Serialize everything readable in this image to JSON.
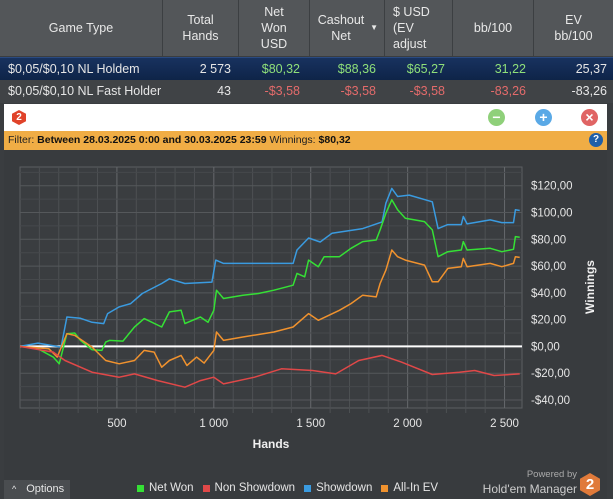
{
  "table": {
    "headers": [
      "Game Type",
      "Total Hands",
      "Net Won USD",
      "Cashout Net",
      "$ USD (EV adjust",
      "bb/100",
      "EV bb/100"
    ],
    "rows": [
      {
        "game": "$0,05/$0,10 NL Holdem",
        "hands": "2 573",
        "net": "$80,32",
        "cashout": "$88,36",
        "ev": "$65,27",
        "bb": "31,22",
        "evbb": "25,37"
      },
      {
        "game": "$0,05/$0,10 NL Fast Holder",
        "hands": "43",
        "net": "-$3,58",
        "cashout": "-$3,58",
        "ev": "-$3,58",
        "bb": "-83,26",
        "evbb": "-83,26"
      }
    ]
  },
  "window": {
    "logo": "2",
    "minimize": "−",
    "maximize": "+",
    "close": "×"
  },
  "filter": {
    "label": "Filter:",
    "range": "Between 28.03.2025 0:00 and 30.03.2025 23:59",
    "winnings_label": "Winnings:",
    "winnings": "$80,32",
    "help": "?"
  },
  "options_label": "Options",
  "powered_by": "Powered by",
  "brand": "Hold'em Manager",
  "chart_data": {
    "type": "line",
    "xlabel": "Hands",
    "ylabel": "Winnings",
    "xlim": [
      0,
      2590
    ],
    "ylim": [
      -46,
      134
    ],
    "xticks": [
      500,
      1000,
      1500,
      2000,
      2500
    ],
    "xtick_labels": [
      "500",
      "1 000",
      "1 500",
      "2 000",
      "2 500"
    ],
    "yticks": [
      120,
      100,
      80,
      60,
      40,
      20,
      0,
      -20,
      -40
    ],
    "ytick_labels": [
      "$120,00",
      "$100,00",
      "$80,00",
      "$60,00",
      "$40,00",
      "$20,00",
      "$0,00",
      "-$20,00",
      "-$40,00"
    ],
    "grid": true,
    "legend": "bottom",
    "series": [
      {
        "name": "Showdown",
        "color": "#3a9be0",
        "x": [
          0,
          93,
          212,
          242,
          312,
          372,
          432,
          452,
          512,
          571,
          631,
          731,
          771,
          851,
          990,
          1010,
          1050,
          1409,
          1429,
          1489,
          1549,
          1609,
          1768,
          1868,
          1888,
          1918,
          1948,
          2008,
          2127,
          2157,
          2207,
          2277,
          2287,
          2307,
          2426,
          2486,
          2546,
          2556,
          2578
        ],
        "y": [
          0,
          2.5,
          -0.5,
          22,
          21,
          18,
          17,
          24.5,
          29.5,
          32,
          39.5,
          47,
          50.5,
          47,
          48,
          64.5,
          62,
          62,
          72,
          81,
          78,
          84.5,
          88,
          93,
          107,
          118,
          112,
          113,
          108,
          88,
          91,
          91,
          97,
          91.5,
          94.5,
          92.5,
          92.5,
          102,
          101.5
        ]
      },
      {
        "name": "Net Won",
        "color": "#35e035",
        "x": [
          0,
          93,
          172,
          202,
          242,
          282,
          312,
          372,
          422,
          442,
          462,
          531,
          591,
          641,
          731,
          771,
          831,
          851,
          931,
          970,
          1000,
          1014,
          1050,
          1150,
          1230,
          1310,
          1409,
          1429,
          1469,
          1489,
          1539,
          1569,
          1648,
          1708,
          1768,
          1838,
          1858,
          1888,
          1918,
          1948,
          1988,
          2087,
          2127,
          2157,
          2207,
          2277,
          2287,
          2307,
          2426,
          2486,
          2546,
          2556,
          2578
        ],
        "y": [
          0,
          -1.75,
          -8,
          -13,
          9.5,
          10,
          4.5,
          -2.5,
          -3,
          3.25,
          4.5,
          4,
          14.5,
          20.75,
          14.5,
          25.75,
          27,
          17,
          22,
          18,
          27,
          42,
          35.75,
          38.25,
          39.5,
          42,
          45.75,
          54.5,
          52,
          64.5,
          59.5,
          67,
          67,
          73.25,
          78.25,
          79.5,
          87,
          99.5,
          109.5,
          102,
          95.75,
          93.25,
          87,
          67,
          70.75,
          72,
          78.25,
          72,
          73.25,
          70.75,
          72.5,
          82,
          81.5
        ]
      },
      {
        "name": "All-In EV",
        "color": "#f0922e",
        "x": [
          0,
          149,
          192,
          242,
          282,
          372,
          442,
          512,
          591,
          641,
          692,
          731,
          771,
          831,
          861,
          911,
          950,
          1000,
          1014,
          1050,
          1150,
          1310,
          1409,
          1489,
          1539,
          1648,
          1708,
          1768,
          1838,
          1858,
          1888,
          1918,
          1948,
          1988,
          2087,
          2127,
          2157,
          2207,
          2277,
          2287,
          2307,
          2426,
          2486,
          2546,
          2556,
          2578
        ],
        "y": [
          0,
          -1.75,
          -8,
          9.5,
          8.25,
          -0.5,
          -10.5,
          -13,
          -10.5,
          -3,
          -4.25,
          -15.5,
          -10.5,
          -6.75,
          -14.25,
          -8,
          -12.5,
          -3,
          10.75,
          4.5,
          7,
          10.75,
          14.5,
          24.5,
          19.5,
          27,
          32,
          38.25,
          37,
          47,
          57,
          72,
          67,
          64.5,
          60.75,
          48.25,
          48.25,
          58.25,
          59.5,
          65.75,
          59.5,
          62,
          59.5,
          62,
          67,
          66.5
        ]
      },
      {
        "name": "Non Showdown",
        "color": "#e04848",
        "x": [
          0,
          172,
          232,
          372,
          512,
          591,
          711,
          851,
          931,
          1000,
          1050,
          1210,
          1349,
          1509,
          1629,
          1748,
          1868,
          1968,
          2127,
          2267,
          2346,
          2446,
          2578
        ],
        "y": [
          0,
          -4.25,
          -10.5,
          -19.25,
          -23,
          -20.5,
          -25.5,
          -30.5,
          -25.5,
          -23,
          -28,
          -23,
          -16.75,
          -18,
          -20.5,
          -10.5,
          -6.75,
          -11.75,
          -21,
          -19.25,
          -18,
          -21.75,
          -20.5
        ]
      }
    ],
    "legend_order": [
      "Net Won",
      "Non Showdown",
      "Showdown",
      "All-In EV"
    ]
  }
}
